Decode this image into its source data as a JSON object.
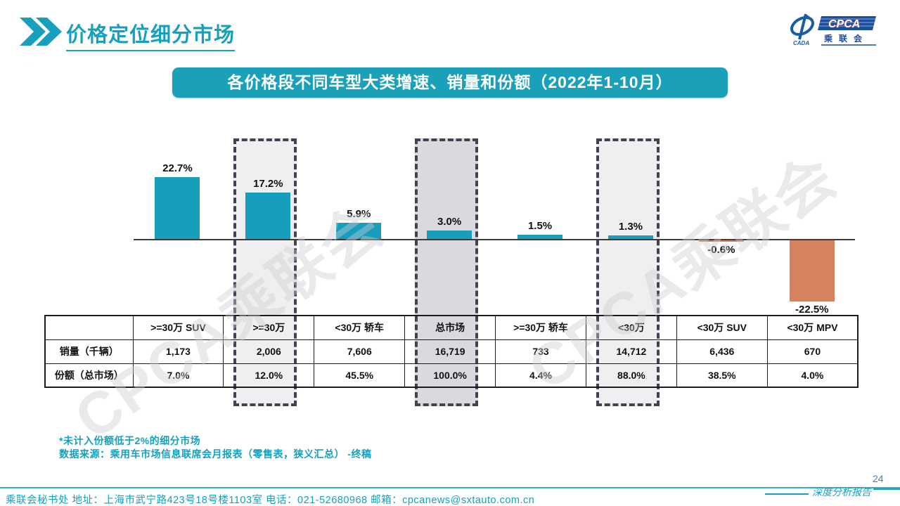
{
  "slide": {
    "title": "价格定位细分市场",
    "banner": "各价格段不同车型大类增速、销量和份额（2022年1-10月）",
    "page_number": "24",
    "report_label": "深度分析报告",
    "watermark": "CPCA乘联会"
  },
  "logo": {
    "icon_text": "CADA",
    "name_en": "CPCA",
    "name_cn": "乘联会"
  },
  "chart_data": {
    "type": "bar",
    "title": "各价格段不同车型大类增速、销量和份额（2022年1-10月）",
    "categories": [
      ">=30万 SUV",
      ">=30万",
      "<30万 轿车",
      "总市场",
      ">=30万 轿车",
      "<30万",
      "<30万 SUV",
      "<30万 MPV"
    ],
    "values": [
      22.7,
      17.2,
      5.9,
      3.0,
      1.5,
      1.3,
      -0.6,
      -22.5
    ],
    "labels": [
      "22.7%",
      "17.2%",
      "5.9%",
      "3.0%",
      "1.5%",
      "1.3%",
      "-0.6%",
      "-22.5%"
    ],
    "unit": "yoy growth %",
    "ylim": [
      -25,
      25
    ],
    "grid": false,
    "legend": "none",
    "highlighted_categories": [
      ">=30万",
      "总市场",
      "<30万"
    ]
  },
  "table": {
    "row_headers": [
      "销量（千辆）",
      "份额（总市场）"
    ],
    "columns": [
      {
        "header": ">=30万 SUV",
        "sales": "1,173",
        "share": "7.0%",
        "highlight": "none"
      },
      {
        "header": ">=30万",
        "sales": "2,006",
        "share": "12.0%",
        "highlight": "light"
      },
      {
        "header": "<30万 轿车",
        "sales": "7,606",
        "share": "45.5%",
        "highlight": "none"
      },
      {
        "header": "总市场",
        "sales": "16,719",
        "share": "100.0%",
        "highlight": "dark"
      },
      {
        "header": ">=30万 轿车",
        "sales": "733",
        "share": "4.4%",
        "highlight": "none"
      },
      {
        "header": "<30万",
        "sales": "14,712",
        "share": "88.0%",
        "highlight": "light"
      },
      {
        "header": "<30万 SUV",
        "sales": "6,436",
        "share": "38.5%",
        "highlight": "none"
      },
      {
        "header": "<30万 MPV",
        "sales": "670",
        "share": "4.0%",
        "highlight": "none"
      }
    ]
  },
  "notes": {
    "footnote": "*未计入份额低于2%的细分市场",
    "source": "数据来源：乘用车市场信息联席会月报表（零售表，狭义汇总） -终稿"
  },
  "footer": {
    "contact": "乘联会秘书处   地址：上海市武宁路423号18号楼1103室  电话：021-52680968   邮箱：cpcanews@sxtauto.com.cn"
  },
  "colors": {
    "accent_teal": "#17a0bc",
    "banner_teal": "#1ba0ba",
    "bar_positive": "#189ebd",
    "bar_negative": "#d5825f",
    "highlight_light": "#efeff1",
    "highlight_dark": "#d9d9de",
    "dash_border": "#3f4450",
    "page_number": "#4e7fa0"
  }
}
